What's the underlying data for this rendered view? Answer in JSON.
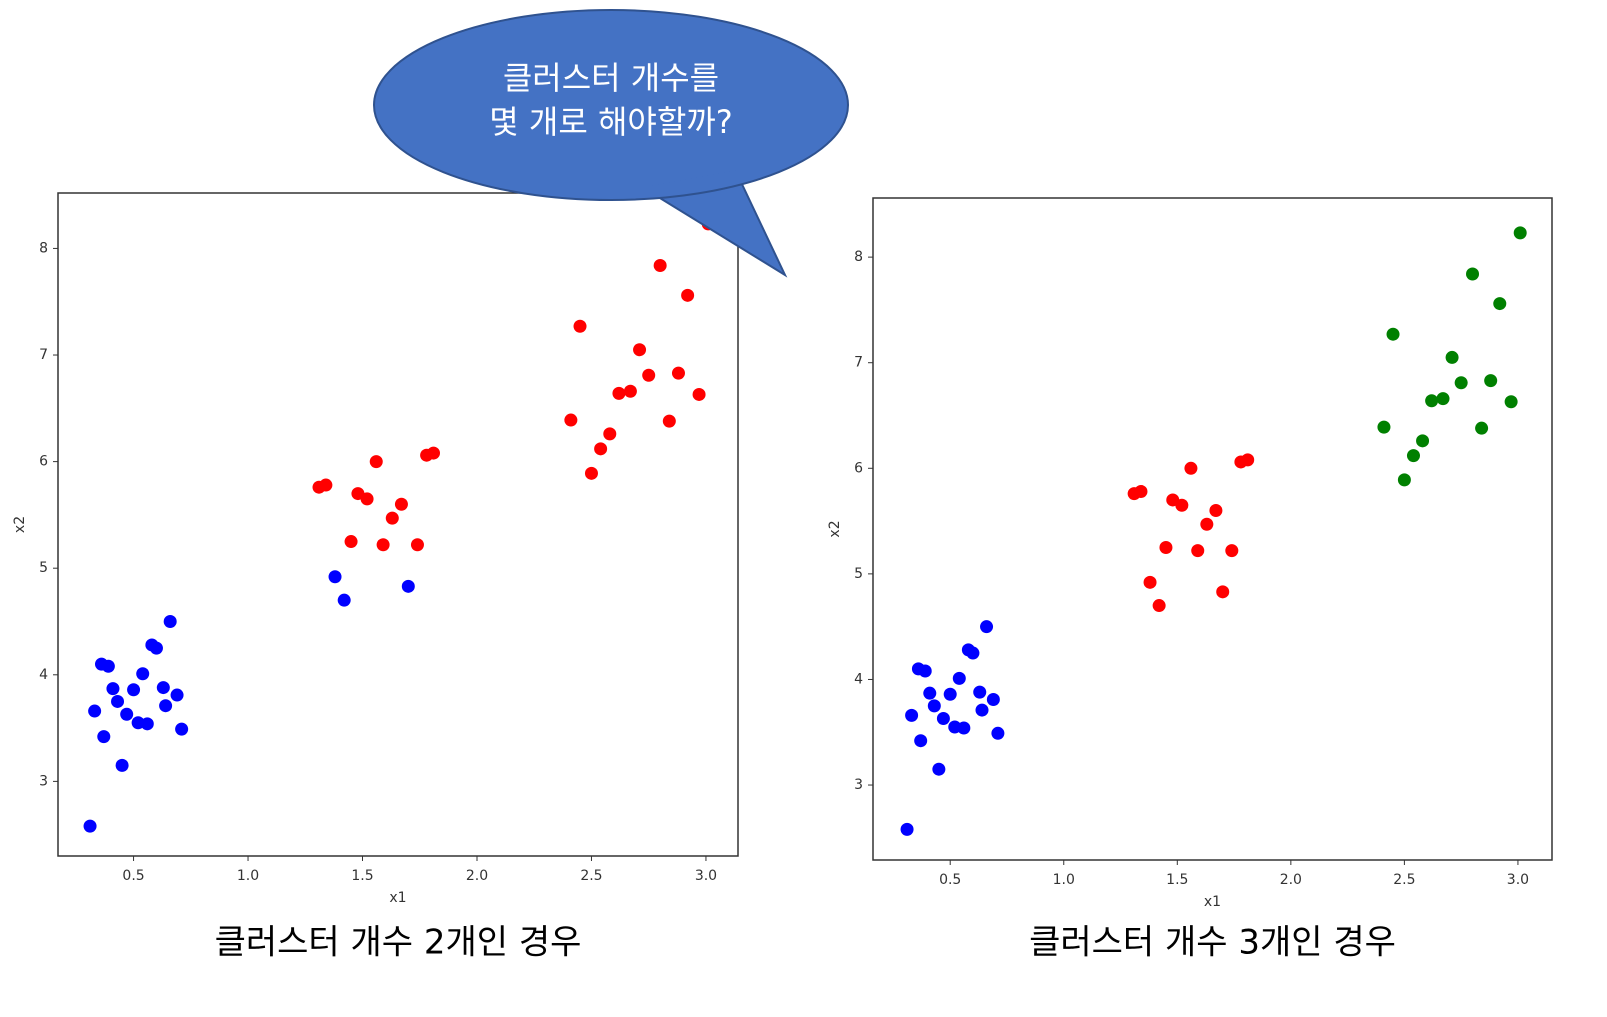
{
  "callout": {
    "lines": [
      "클러스터 개수를",
      "몇 개로 해야할까?"
    ]
  },
  "chart_data": [
    {
      "type": "scatter",
      "title": "클러스터 개수 2개인 경우",
      "x_label": "x1",
      "y_label": "x2",
      "xlim": [
        0.17,
        3.14
      ],
      "ylim": [
        2.3,
        8.52
      ],
      "xticks": [
        0.5,
        {
          "value": 1,
          "label": "1.0"
        },
        1.5,
        {
          "value": 2,
          "label": "2.0"
        },
        2.5,
        {
          "value": 3,
          "label": "3.0"
        }
      ],
      "yticks": [
        3,
        4,
        5,
        6,
        7,
        8
      ],
      "series": [
        {
          "color": "#0000ff",
          "x": [
            0.31,
            0.33,
            0.36,
            0.39,
            0.37,
            0.41,
            0.43,
            0.45,
            0.47,
            0.5,
            0.52,
            0.56,
            0.54,
            0.58,
            0.6,
            0.63,
            0.64,
            0.66,
            0.69,
            0.71,
            1.38,
            1.42,
            1.7
          ],
          "values": [
            2.58,
            3.66,
            4.1,
            4.08,
            3.42,
            3.87,
            3.75,
            3.15,
            3.63,
            3.86,
            3.55,
            3.54,
            4.01,
            4.28,
            4.25,
            3.88,
            3.71,
            4.5,
            3.81,
            3.49,
            4.92,
            4.7,
            4.83
          ]
        },
        {
          "color": "#ff0000",
          "x": [
            1.31,
            1.34,
            1.45,
            1.48,
            1.52,
            1.56,
            1.59,
            1.63,
            1.67,
            1.74,
            1.78,
            1.81,
            2.41,
            2.45,
            2.5,
            2.54,
            2.58,
            2.62,
            2.67,
            2.71,
            2.75,
            2.8,
            2.84,
            2.88,
            2.92,
            2.97,
            3.01
          ],
          "values": [
            5.76,
            5.78,
            5.25,
            5.7,
            5.65,
            6.0,
            5.22,
            5.47,
            5.6,
            5.22,
            6.06,
            6.08,
            6.39,
            7.27,
            5.89,
            6.12,
            6.26,
            6.64,
            6.66,
            7.05,
            6.81,
            7.84,
            6.38,
            6.83,
            7.56,
            6.63,
            8.23
          ]
        }
      ]
    },
    {
      "type": "scatter",
      "title": "클러스터 개수 3개인 경우",
      "x_label": "x1",
      "y_label": "x2",
      "xlim": [
        0.16,
        3.15
      ],
      "ylim": [
        2.29,
        8.56
      ],
      "xticks": [
        0.5,
        {
          "value": 1,
          "label": "1.0"
        },
        1.5,
        {
          "value": 2,
          "label": "2.0"
        },
        2.5,
        {
          "value": 3,
          "label": "3.0"
        }
      ],
      "yticks": [
        3,
        4,
        5,
        6,
        7,
        8
      ],
      "series": [
        {
          "color": "#0000ff",
          "x": [
            0.31,
            0.33,
            0.36,
            0.39,
            0.37,
            0.41,
            0.43,
            0.45,
            0.47,
            0.5,
            0.52,
            0.56,
            0.54,
            0.58,
            0.6,
            0.63,
            0.64,
            0.66,
            0.69,
            0.71
          ],
          "values": [
            2.58,
            3.66,
            4.1,
            4.08,
            3.42,
            3.87,
            3.75,
            3.15,
            3.63,
            3.86,
            3.55,
            3.54,
            4.01,
            4.28,
            4.25,
            3.88,
            3.71,
            4.5,
            3.81,
            3.49
          ]
        },
        {
          "color": "#ff0000",
          "x": [
            1.38,
            1.42,
            1.7,
            1.31,
            1.34,
            1.45,
            1.48,
            1.52,
            1.56,
            1.59,
            1.63,
            1.67,
            1.74,
            1.78,
            1.81
          ],
          "values": [
            4.92,
            4.7,
            4.83,
            5.76,
            5.78,
            5.25,
            5.7,
            5.65,
            6.0,
            5.22,
            5.47,
            5.6,
            5.22,
            6.06,
            6.08
          ]
        },
        {
          "color": "#008000",
          "x": [
            2.41,
            2.45,
            2.5,
            2.54,
            2.58,
            2.62,
            2.67,
            2.71,
            2.75,
            2.8,
            2.84,
            2.88,
            2.92,
            2.97,
            3.01
          ],
          "values": [
            6.39,
            7.27,
            5.89,
            6.12,
            6.26,
            6.64,
            6.66,
            7.05,
            6.81,
            7.84,
            6.38,
            6.83,
            7.56,
            6.63,
            8.23
          ]
        }
      ]
    }
  ]
}
